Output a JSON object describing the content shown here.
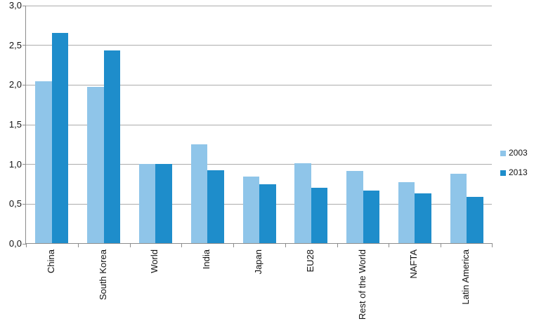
{
  "chart_data": {
    "type": "bar",
    "title": "",
    "xlabel": "",
    "ylabel": "",
    "categories": [
      "China",
      "South Korea",
      "World",
      "India",
      "Japan",
      "EU28",
      "Rest of the World",
      "NAFTA",
      "Latin America"
    ],
    "series": [
      {
        "name": "2003",
        "color": "#8FC5E9",
        "values": [
          2.04,
          1.97,
          1.0,
          1.24,
          0.84,
          1.01,
          0.91,
          0.77,
          0.87
        ]
      },
      {
        "name": "2013",
        "color": "#1E8DCB",
        "values": [
          2.65,
          2.43,
          1.0,
          0.92,
          0.74,
          0.7,
          0.66,
          0.63,
          0.58
        ]
      }
    ],
    "ylim": [
      0,
      3
    ],
    "ytick_step": 0.5,
    "ytick_labels": [
      "0,0",
      "0,5",
      "1,0",
      "1,5",
      "2,0",
      "2,5",
      "3,0"
    ],
    "grid": true,
    "legend_position": "right",
    "x_label_rotation_deg": 90
  },
  "colors": {
    "series_2003": "#8FC5E9",
    "series_2013": "#1E8DCB",
    "gridline": "#ACACAC",
    "axis": "#8C8C8C",
    "text": "#111111",
    "background": "#FFFFFF"
  }
}
